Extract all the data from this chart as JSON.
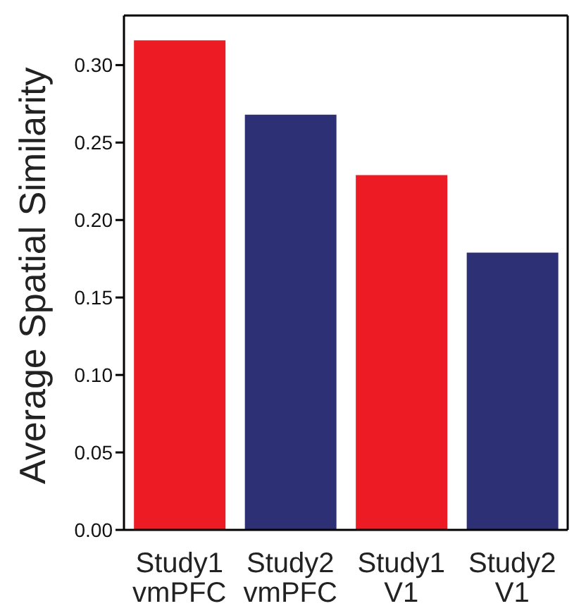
{
  "chart_data": {
    "type": "bar",
    "ylabel": "Average Spatial Similarity",
    "categories": [
      "Study1\nvmPFC",
      "Study2\nvmPFC",
      "Study1\nV1",
      "Study2\nV1"
    ],
    "values": [
      0.316,
      0.268,
      0.229,
      0.179
    ],
    "colors": [
      "#ed1c24",
      "#2e3076",
      "#ed1c24",
      "#2e3076"
    ],
    "ylim": [
      0,
      0.332
    ],
    "yticks": [
      {
        "value": 0,
        "label": "0.00"
      },
      {
        "value": 0.05,
        "label": "0.05"
      },
      {
        "value": 0.1,
        "label": "0.10"
      },
      {
        "value": 0.15,
        "label": "0.15"
      },
      {
        "value": 0.2,
        "label": "0.20"
      },
      {
        "value": 0.25,
        "label": "0.25"
      },
      {
        "value": 0.3,
        "label": "0.30"
      }
    ],
    "grid": false,
    "legend": false
  }
}
